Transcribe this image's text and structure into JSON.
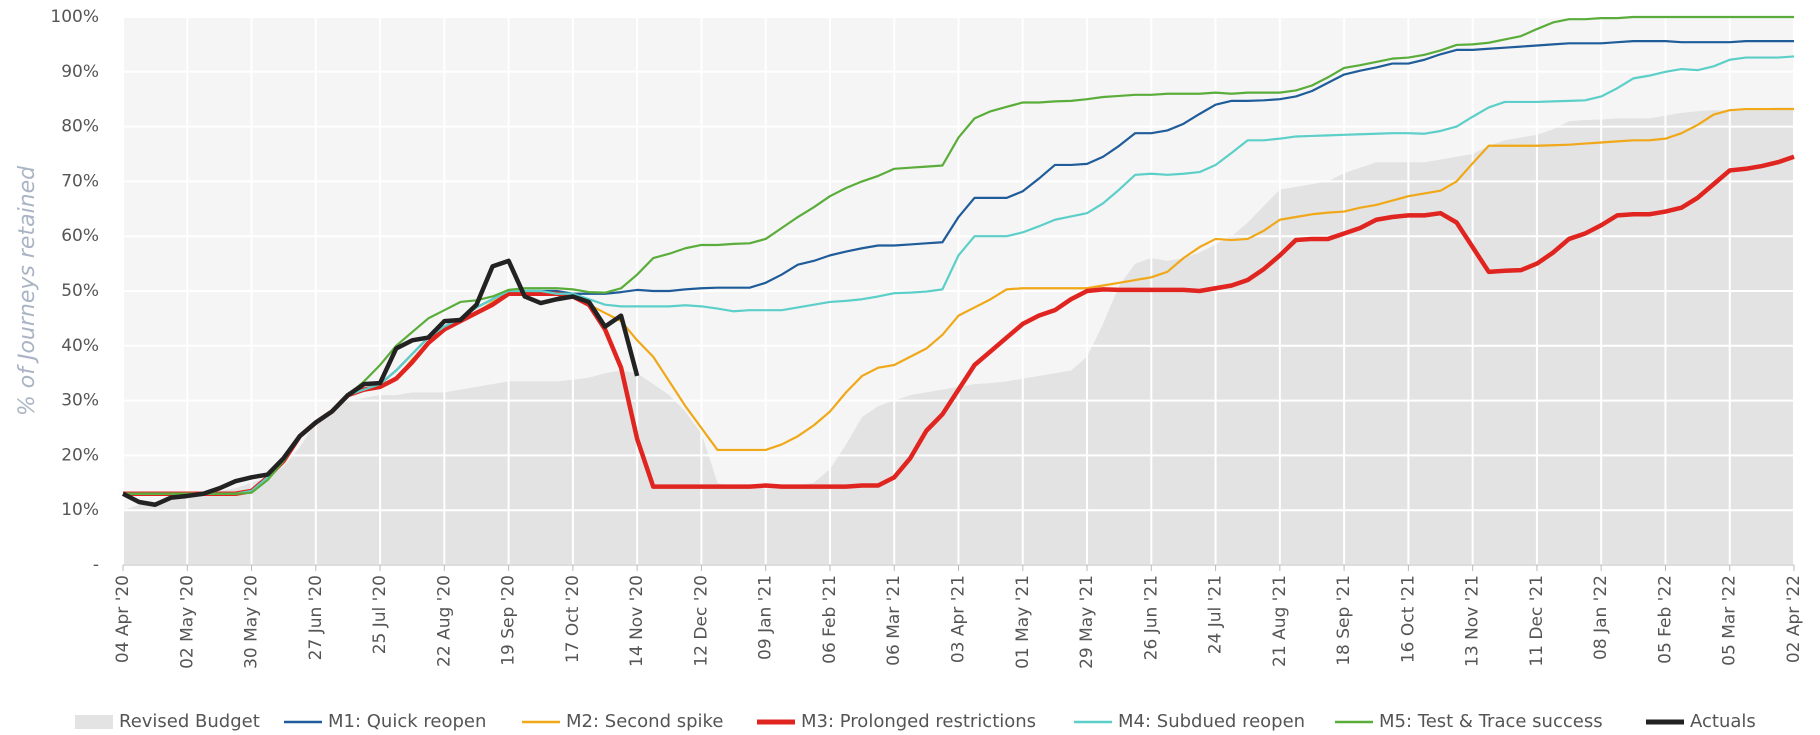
{
  "chart_data": {
    "type": "line",
    "y_label": "% of Journeys retained",
    "categories": [
      "04 Apr '20",
      null,
      null,
      null,
      "02 May '20",
      null,
      null,
      null,
      "30 May '20",
      null,
      null,
      null,
      "27 Jun '20",
      null,
      null,
      null,
      "25 Jul '20",
      null,
      null,
      null,
      "22 Aug '20",
      null,
      null,
      null,
      "19 Sep '20",
      null,
      null,
      null,
      "17 Oct '20",
      null,
      null,
      null,
      "14 Nov '20",
      null,
      null,
      null,
      "12 Dec '20",
      null,
      null,
      null,
      "09 Jan '21",
      null,
      null,
      null,
      "06 Feb '21",
      null,
      null,
      null,
      "06 Mar '21",
      null,
      null,
      null,
      "03 Apr '21",
      null,
      null,
      null,
      "01 May '21",
      null,
      null,
      null,
      "29 May '21",
      null,
      null,
      null,
      "26 Jun '21",
      null,
      null,
      null,
      "24 Jul '21",
      null,
      null,
      null,
      "21 Aug '21",
      null,
      null,
      null,
      "18 Sep '21",
      null,
      null,
      null,
      "16 Oct '21",
      null,
      null,
      null,
      "13 Nov '21",
      null,
      null,
      null,
      "11 Dec '21",
      null,
      null,
      null,
      "08 Jan '22",
      null,
      null,
      null,
      "05 Feb '22",
      null,
      null,
      null,
      "05 Mar '22",
      null,
      null,
      null,
      "02 Apr '22"
    ],
    "ylim": [
      0,
      100
    ],
    "yticks": [
      {
        "value": 0,
        "label": "-"
      },
      {
        "value": 10,
        "label": "10%"
      },
      {
        "value": 20,
        "label": "20%"
      },
      {
        "value": 30,
        "label": "30%"
      },
      {
        "value": 40,
        "label": "40%"
      },
      {
        "value": 50,
        "label": "50%"
      },
      {
        "value": 60,
        "label": "60%"
      },
      {
        "value": 70,
        "label": "70%"
      },
      {
        "value": 80,
        "label": "80%"
      },
      {
        "value": 90,
        "label": "90%"
      },
      {
        "value": 100,
        "label": "100%"
      }
    ],
    "grid": true,
    "legend": "bottom",
    "series": [
      {
        "name": "Revised Budget",
        "type": "area",
        "color": "#e3e3e3",
        "values": [
          10,
          11,
          11.5,
          12,
          12.5,
          13,
          13.5,
          14,
          15,
          16,
          18,
          21.5,
          26,
          28.5,
          30,
          30.5,
          31,
          31,
          31.5,
          31.5,
          31.5,
          32,
          32.5,
          33,
          33.5,
          33.5,
          33.5,
          33.5,
          33.8,
          34.2,
          35,
          35.5,
          35,
          33,
          31,
          28,
          24,
          15,
          14,
          14,
          14,
          14,
          14.5,
          15,
          17.5,
          22,
          27,
          29,
          30,
          31,
          31.5,
          32,
          32.5,
          33,
          33.2,
          33.5,
          34,
          34.5,
          35,
          35.5,
          38,
          44,
          51,
          55,
          56,
          55.5,
          56,
          57,
          58.5,
          60,
          62.5,
          65.5,
          68.5,
          69,
          69.5,
          70,
          71.5,
          72.5,
          73.5,
          73.5,
          73.5,
          73.5,
          74,
          74.5,
          75,
          76.5,
          77.5,
          78,
          78.5,
          79.5,
          81,
          81.2,
          81.3,
          81.5,
          81.5,
          81.5,
          82,
          82.5,
          82.8,
          83,
          83,
          83.2,
          83.3,
          83.5,
          83.5
        ]
      },
      {
        "name": "M1: Quick reopen",
        "color": "#1f5c99",
        "values": [
          13,
          13,
          13,
          13,
          13,
          13,
          13,
          13,
          13.5,
          16,
          19,
          23.5,
          26,
          28,
          31,
          32,
          33,
          35.5,
          38.5,
          41.5,
          43.5,
          45,
          47,
          48.5,
          50,
          50,
          50,
          50,
          49.5,
          49.5,
          49.5,
          49.8,
          50.2,
          50,
          50,
          50.3,
          50.5,
          50.6,
          50.6,
          50.6,
          51.5,
          53,
          54.8,
          55.5,
          56.5,
          57.2,
          57.8,
          58.3,
          58.3,
          58.5,
          58.7,
          58.9,
          63.5,
          67,
          67,
          67,
          68.2,
          70.5,
          73,
          73,
          73.2,
          74.5,
          76.5,
          78.8,
          78.8,
          79.3,
          80.5,
          82.3,
          84,
          84.7,
          84.7,
          84.8,
          85,
          85.5,
          86.5,
          88,
          89.5,
          90.2,
          90.8,
          91.5,
          91.5,
          92.2,
          93.2,
          94,
          94,
          94.2,
          94.4,
          94.6,
          94.8,
          95,
          95.2,
          95.2,
          95.2,
          95.4,
          95.6,
          95.6,
          95.6,
          95.4,
          95.4,
          95.4,
          95.4,
          95.6,
          95.6,
          95.6,
          95.6
        ]
      },
      {
        "name": "M2: Second spike",
        "color": "#f0a818",
        "values": [
          13,
          13,
          13,
          13,
          13,
          13,
          13,
          13,
          13.5,
          16,
          19,
          23.5,
          26,
          28,
          31,
          32,
          32.5,
          34,
          37.5,
          40.5,
          43,
          44.5,
          46,
          48,
          49.5,
          49.5,
          49.5,
          49.5,
          49,
          47.5,
          46,
          44.5,
          41,
          38,
          33.5,
          29,
          25,
          21,
          21,
          21,
          21,
          22,
          23.5,
          25.5,
          28,
          31.5,
          34.5,
          36,
          36.5,
          38,
          39.5,
          42,
          45.5,
          47,
          48.5,
          50.3,
          50.5,
          50.5,
          50.5,
          50.5,
          50.5,
          51,
          51.5,
          52,
          52.5,
          53.5,
          56,
          58,
          59.5,
          59.3,
          59.5,
          61,
          63,
          63.5,
          64,
          64.3,
          64.5,
          65.2,
          65.7,
          66.5,
          67.3,
          67.8,
          68.3,
          70,
          73.3,
          76.5,
          76.5,
          76.5,
          76.5,
          76.6,
          76.7,
          76.9,
          77.1,
          77.3,
          77.5,
          77.5,
          77.8,
          78.8,
          80.3,
          82.2,
          83,
          83.2,
          83.2,
          83.2,
          83.2
        ]
      },
      {
        "name": "M3: Prolonged restrictions",
        "color": "#e0241f",
        "values": [
          13,
          13,
          13,
          13,
          13,
          13,
          13,
          13,
          13.5,
          16,
          19,
          23.5,
          26,
          28,
          31,
          32,
          32.5,
          34,
          37,
          40.5,
          43,
          44.5,
          46,
          47.5,
          49.5,
          49.5,
          49.5,
          49.5,
          49,
          47.5,
          43,
          36,
          23,
          14.3,
          14.3,
          14.3,
          14.3,
          14.3,
          14.3,
          14.3,
          14.5,
          14.3,
          14.3,
          14.3,
          14.3,
          14.3,
          14.5,
          14.5,
          16,
          19.5,
          24.5,
          27.5,
          32,
          36.5,
          39,
          41.5,
          44,
          45.5,
          46.5,
          48.5,
          50,
          50.3,
          50.2,
          50.2,
          50.2,
          50.2,
          50.2,
          50,
          50.5,
          51,
          52,
          54,
          56.5,
          59.3,
          59.5,
          59.5,
          60.5,
          61.5,
          63,
          63.5,
          63.8,
          63.8,
          64.2,
          62.5,
          58,
          53.5,
          53.7,
          53.8,
          55,
          57,
          59.5,
          60.5,
          62,
          63.8,
          64,
          64,
          64.5,
          65.2,
          67,
          69.5,
          72,
          72.3,
          72.8,
          73.5,
          74.5
        ]
      },
      {
        "name": "M4: Subdued reopen",
        "color": "#5ccfc8",
        "values": [
          13,
          13,
          13,
          13,
          13,
          13,
          13,
          13,
          13.5,
          16,
          19,
          23.5,
          26,
          28,
          31,
          32,
          33,
          35.5,
          38.5,
          41.5,
          43.5,
          45,
          47,
          48.5,
          50,
          50,
          50,
          49.5,
          49.5,
          48.5,
          47.5,
          47.2,
          47.2,
          47.2,
          47.2,
          47.4,
          47.2,
          46.8,
          46.3,
          46.5,
          46.5,
          46.5,
          47,
          47.5,
          48,
          48.2,
          48.5,
          49,
          49.6,
          49.7,
          49.9,
          50.3,
          56.5,
          60,
          60,
          60,
          60.7,
          61.8,
          63,
          63.6,
          64.2,
          66,
          68.5,
          71.2,
          71.4,
          71.2,
          71.4,
          71.7,
          73,
          75.2,
          77.5,
          77.5,
          77.8,
          78.2,
          78.3,
          78.4,
          78.5,
          78.6,
          78.7,
          78.8,
          78.8,
          78.7,
          79.2,
          80,
          81.8,
          83.5,
          84.5,
          84.5,
          84.5,
          84.6,
          84.7,
          84.8,
          85.5,
          87,
          88.8,
          89.3,
          90,
          90.5,
          90.3,
          91,
          92.2,
          92.6,
          92.6,
          92.6,
          92.8
        ]
      },
      {
        "name": "M5: Test & Trace success",
        "color": "#5aad3a",
        "values": [
          13,
          13,
          13,
          13,
          13,
          13,
          13,
          13,
          13.2,
          15.5,
          19,
          23.5,
          26,
          28,
          31,
          33.5,
          36.5,
          40,
          42.5,
          45,
          46.5,
          48,
          48.3,
          49,
          50.2,
          50.5,
          50.5,
          50.5,
          50.3,
          49.8,
          49.7,
          50.5,
          53,
          56,
          56.8,
          57.8,
          58.4,
          58.4,
          58.6,
          58.7,
          59.5,
          61.5,
          63.5,
          65.3,
          67.3,
          68.8,
          70,
          71,
          72.3,
          72.5,
          72.7,
          72.9,
          78,
          81.5,
          82.8,
          83.6,
          84.4,
          84.4,
          84.6,
          84.7,
          85,
          85.4,
          85.6,
          85.8,
          85.8,
          86,
          86,
          86,
          86.2,
          86,
          86.2,
          86.2,
          86.2,
          86.6,
          87.5,
          89,
          90.7,
          91.2,
          91.8,
          92.4,
          92.6,
          93.1,
          93.9,
          94.9,
          95,
          95.3,
          95.9,
          96.5,
          97.8,
          99,
          99.6,
          99.6,
          99.8,
          99.8,
          100,
          100,
          100,
          100,
          100,
          100,
          100,
          100,
          100,
          100,
          100
        ]
      },
      {
        "name": "Actuals",
        "color": "#222222",
        "values": [
          13,
          11.5,
          11,
          12.3,
          12.6,
          13,
          14,
          15.3,
          16,
          16.5,
          19.5,
          23.5,
          26,
          28,
          31,
          33,
          33.2,
          39.5,
          41,
          41.5,
          44.5,
          44.7,
          47.5,
          54.5,
          55.5,
          49,
          47.8,
          48.5,
          49,
          48,
          43.5,
          45.5,
          34.5,
          null,
          null,
          null,
          null,
          null,
          null,
          null,
          null,
          null,
          null,
          null,
          null,
          null,
          null,
          null,
          null,
          null,
          null,
          null,
          null,
          null,
          null,
          null,
          null,
          null,
          null,
          null,
          null,
          null,
          null,
          null,
          null,
          null,
          null,
          null,
          null,
          null,
          null,
          null,
          null,
          null,
          null,
          null,
          null,
          null,
          null,
          null,
          null,
          null,
          null,
          null,
          null,
          null,
          null,
          null,
          null,
          null,
          null,
          null,
          null,
          null,
          null,
          null,
          null,
          null,
          null,
          null,
          null,
          null,
          null,
          null,
          null
        ]
      }
    ]
  }
}
